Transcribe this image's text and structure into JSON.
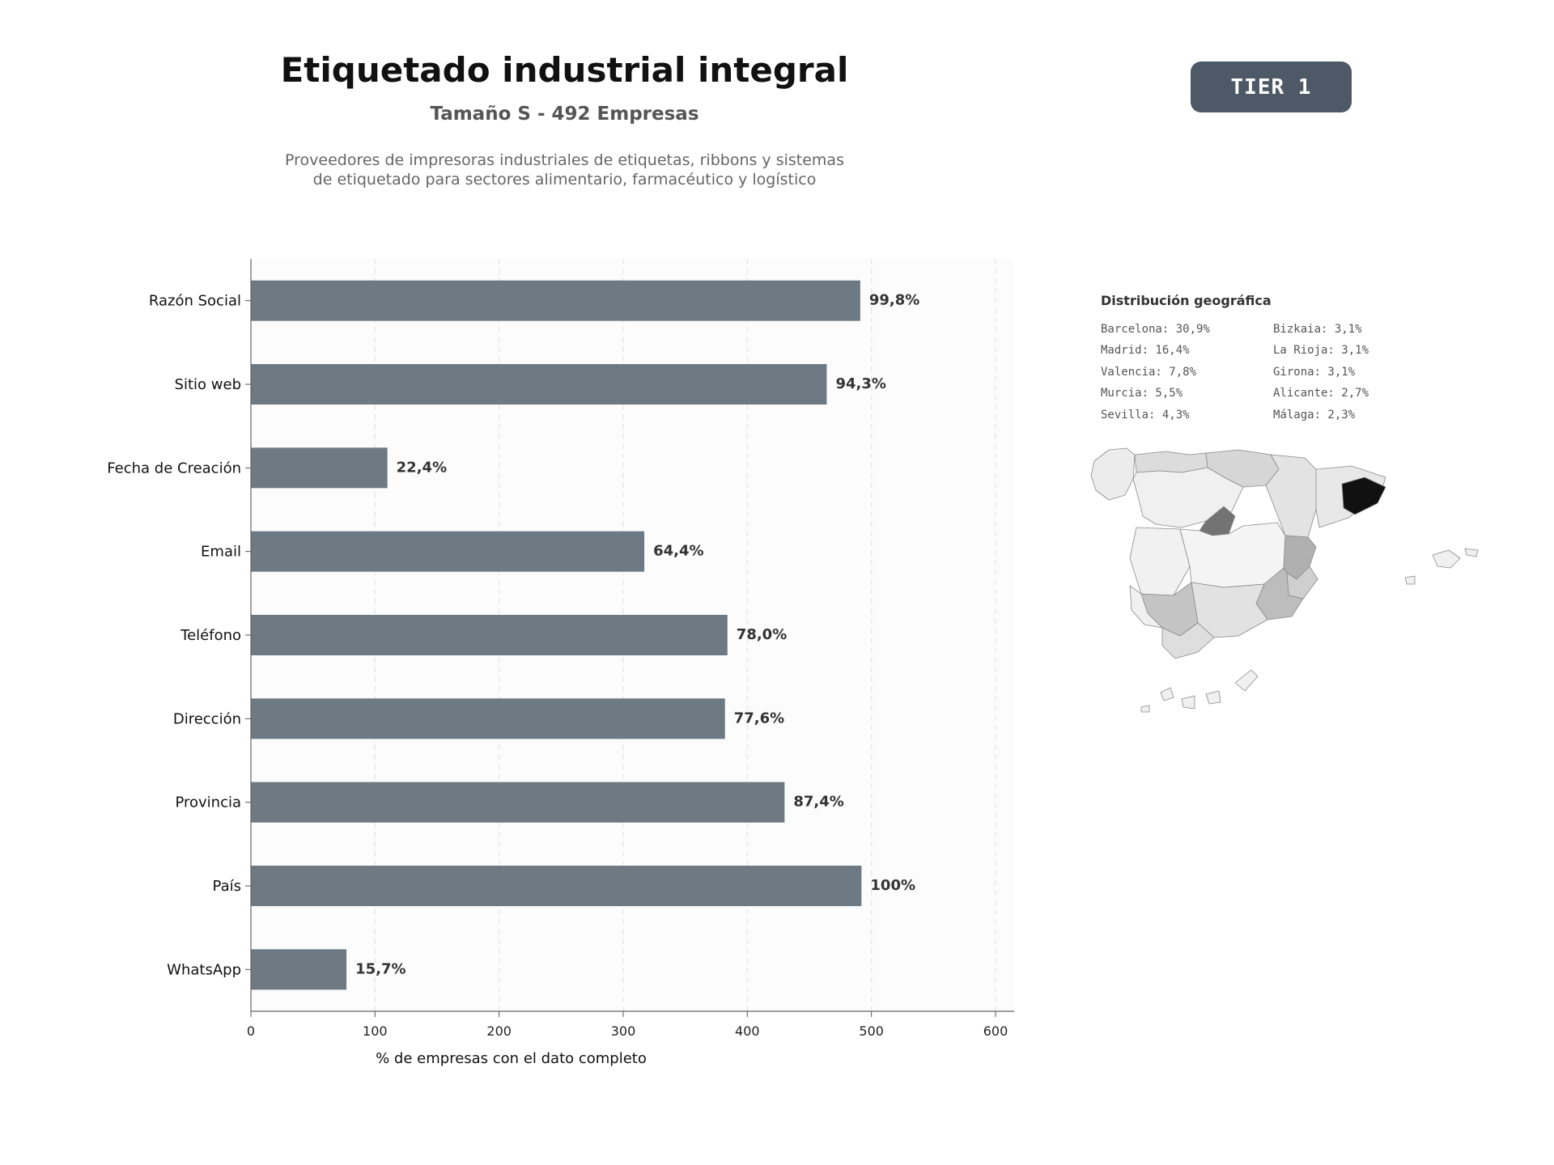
{
  "header": {
    "title": "Etiquetado industrial integral",
    "subtitle": "Tamaño S - 492 Empresas",
    "description": "Proveedores de impresoras industriales de etiquetas, ribbons y sistemas de etiquetado para sectores alimentario, farmacéutico y logístico",
    "tier_badge": "TIER 1"
  },
  "chart_data": {
    "type": "bar",
    "orientation": "horizontal",
    "categories": [
      "Razón Social",
      "Sitio web",
      "Fecha de Creación",
      "Email",
      "Teléfono",
      "Dirección",
      "Provincia",
      "País",
      "WhatsApp"
    ],
    "values": [
      491,
      464,
      110,
      317,
      384,
      382,
      430,
      492,
      77
    ],
    "data_labels": [
      "99,8%",
      "94,3%",
      "22,4%",
      "64,4%",
      "78,0%",
      "77,6%",
      "87,4%",
      "100%",
      "15,7%"
    ],
    "xlabel": "% de empresas con el dato completo",
    "xlim": [
      0,
      615
    ],
    "xticks": [
      0,
      100,
      200,
      300,
      400,
      500,
      600
    ],
    "grid": "vertical dashed",
    "bar_color": "#6e7a83"
  },
  "geo": {
    "title": "Distribución geográfica",
    "col1": [
      "Barcelona: 30,9%",
      "Madrid: 16,4%",
      "Valencia: 7,8%",
      "Murcia: 5,5%",
      "Sevilla: 4,3%"
    ],
    "col2": [
      "Bizkaia: 3,1%",
      "La Rioja: 3,1%",
      "Girona: 3,1%",
      "Alicante: 2,7%",
      "Málaga: 2,3%"
    ]
  }
}
